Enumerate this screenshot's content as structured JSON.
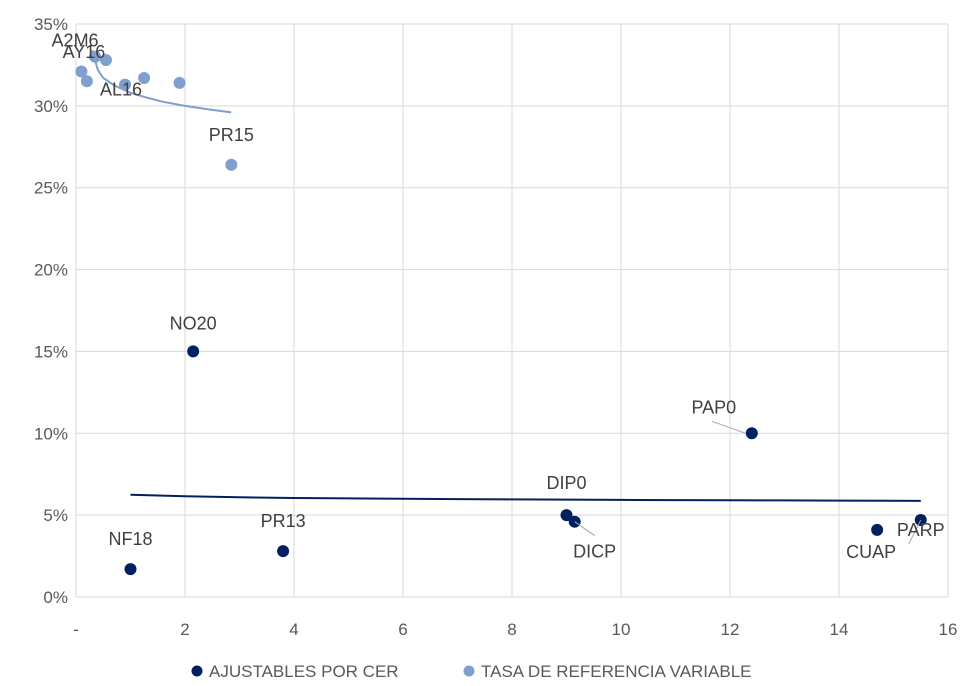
{
  "chart_data": {
    "type": "scatter",
    "title": "",
    "xlabel": "",
    "ylabel": "",
    "xlim": [
      0,
      16
    ],
    "ylim": [
      0,
      0.35
    ],
    "x_ticks": [
      "-",
      "2",
      "4",
      "6",
      "8",
      "10",
      "12",
      "14",
      "16"
    ],
    "y_ticks": [
      "0%",
      "5%",
      "10%",
      "15%",
      "20%",
      "25%",
      "30%",
      "35%"
    ],
    "grid": true,
    "legend_position": "bottom",
    "series": [
      {
        "name": "AJUSTABLES POR CER",
        "color": "#002060",
        "points": [
          {
            "x": 1.0,
            "y": 0.017,
            "label": "NF18"
          },
          {
            "x": 2.15,
            "y": 0.15,
            "label": "NO20"
          },
          {
            "x": 3.8,
            "y": 0.028,
            "label": "PR13"
          },
          {
            "x": 9.0,
            "y": 0.05,
            "label": "DIP0"
          },
          {
            "x": 9.15,
            "y": 0.046,
            "label": "DICP"
          },
          {
            "x": 12.4,
            "y": 0.1,
            "label": "PAP0"
          },
          {
            "x": 14.7,
            "y": 0.041,
            "label": "CUAP"
          },
          {
            "x": 15.5,
            "y": 0.047,
            "label": "PARP"
          }
        ],
        "trendline": {
          "x": [
            1.0,
            1.5,
            2.0,
            2.5,
            3.0,
            4.0,
            5.0,
            6.0,
            7.0,
            8.0,
            9.0,
            10.0,
            11.0,
            12.0,
            13.0,
            14.0,
            15.5
          ],
          "y": [
            0.0625,
            0.062,
            0.0615,
            0.0612,
            0.0609,
            0.0605,
            0.0602,
            0.06,
            0.0598,
            0.0596,
            0.0595,
            0.0593,
            0.0592,
            0.0591,
            0.059,
            0.0589,
            0.0587
          ]
        }
      },
      {
        "name": "TASA DE REFERENCIA VARIABLE",
        "color": "#7F9FCF",
        "points": [
          {
            "x": 0.1,
            "y": 0.321,
            "label": ""
          },
          {
            "x": 0.2,
            "y": 0.315,
            "label": ""
          },
          {
            "x": 0.35,
            "y": 0.33,
            "label": "A2M6"
          },
          {
            "x": 0.55,
            "y": 0.328,
            "label": "AY16"
          },
          {
            "x": 0.9,
            "y": 0.313,
            "label": "AL16"
          },
          {
            "x": 1.25,
            "y": 0.317,
            "label": ""
          },
          {
            "x": 1.9,
            "y": 0.314,
            "label": ""
          },
          {
            "x": 2.85,
            "y": 0.264,
            "label": "PR15"
          }
        ],
        "trendline": {
          "x": [
            0.3,
            0.4,
            0.5,
            0.7,
            1.0,
            1.3,
            1.6,
            2.0,
            2.4,
            2.85
          ],
          "y": [
            0.334,
            0.322,
            0.317,
            0.3125,
            0.308,
            0.305,
            0.3025,
            0.3,
            0.298,
            0.296
          ]
        }
      }
    ]
  }
}
